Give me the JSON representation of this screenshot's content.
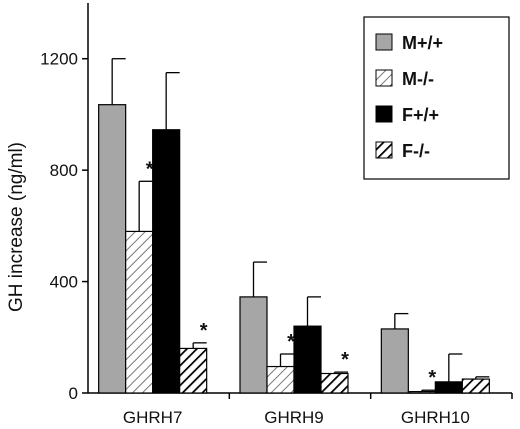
{
  "chart_data": {
    "type": "bar",
    "ylabel": "GH increase (ng/ml)",
    "xlabel": "",
    "ylim": [
      0,
      1400
    ],
    "yticks": [
      0,
      400,
      800,
      1200
    ],
    "ytick_labels": [
      "0",
      "400",
      "800",
      "1200"
    ],
    "categories": [
      "GHRH7",
      "GHRH9",
      "GHRH10"
    ],
    "legend_position": "top-right",
    "series": [
      {
        "name": "M+/+",
        "values": [
          1035,
          345,
          230
        ],
        "errors": [
          165,
          125,
          55
        ],
        "significant": [
          false,
          false,
          false
        ],
        "fill": "gray"
      },
      {
        "name": "M-/-",
        "values": [
          580,
          95,
          5
        ],
        "errors": [
          180,
          45,
          5
        ],
        "significant": [
          true,
          true,
          true
        ],
        "fill": "light-hatch"
      },
      {
        "name": "F+/+",
        "values": [
          945,
          240,
          40
        ],
        "errors": [
          205,
          105,
          100
        ],
        "significant": [
          false,
          false,
          false
        ],
        "fill": "black"
      },
      {
        "name": "F-/-",
        "values": [
          160,
          70,
          50
        ],
        "errors": [
          20,
          5,
          8
        ],
        "significant": [
          true,
          true,
          false
        ],
        "fill": "dark-hatch"
      }
    ],
    "significance_marker": "*"
  }
}
